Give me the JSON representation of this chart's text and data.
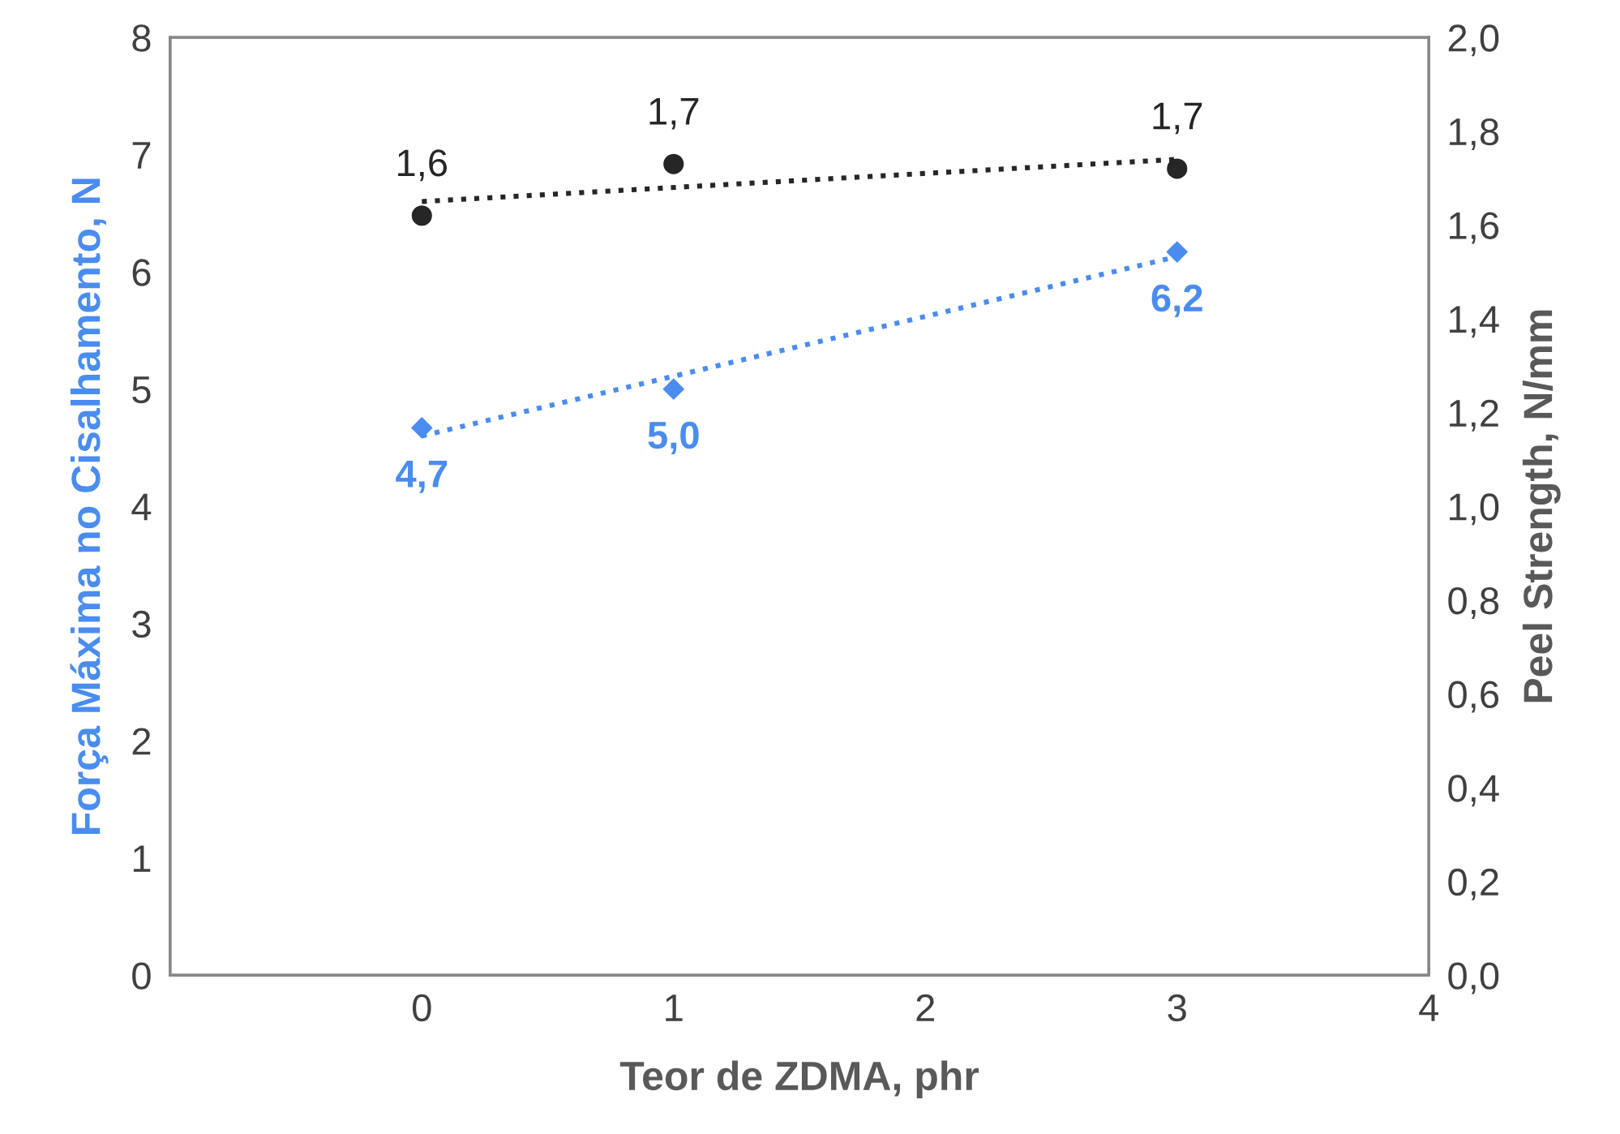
{
  "chart_data": {
    "type": "scatter",
    "xlabel": "Teor de ZDMA, phr",
    "ylabel": "Força Máxima no Cisalhamento, N",
    "y2label": "Peel Strength, N/mm",
    "xlim": [
      -1,
      4
    ],
    "xticks": [
      {
        "value": -1,
        "label": null
      },
      0,
      1,
      2,
      3,
      4
    ],
    "ylim": [
      0,
      8
    ],
    "yticks": [
      0,
      1,
      2,
      3,
      4,
      5,
      6,
      7,
      8
    ],
    "y2lim": [
      0,
      2.0
    ],
    "y2ticks": [
      {
        "value": 0,
        "label": "0,0"
      },
      {
        "value": 0.2,
        "label": "0,2"
      },
      {
        "value": 0.4,
        "label": "0,4"
      },
      {
        "value": 0.6,
        "label": "0,6"
      },
      {
        "value": 0.8,
        "label": "0,8"
      },
      {
        "value": 1.0,
        "label": "1,0"
      },
      {
        "value": 1.2,
        "label": "1,2"
      },
      {
        "value": 1.4,
        "label": "1,4"
      },
      {
        "value": 1.6,
        "label": "1,6"
      },
      {
        "value": 1.8,
        "label": "1,8"
      },
      {
        "value": 2.0,
        "label": "2,0"
      }
    ],
    "grid": false,
    "legend": false,
    "series": [
      {
        "color": "#4a8cf0",
        "x": [
          0,
          1,
          3
        ],
        "values": [
          4.67,
          5.0,
          6.17
        ],
        "value_labels": [
          "4,7",
          "5,0",
          "6,2"
        ],
        "marker": "diamond"
      },
      {
        "type": "line",
        "color": "#4a8cf0",
        "x": [
          0,
          3
        ],
        "values": [
          4.6,
          6.13
        ],
        "marker": "none",
        "line_style": "dotted"
      },
      {
        "axis": "y2",
        "color": "#262626",
        "x": [
          0,
          1,
          3
        ],
        "values": [
          1.62,
          1.73,
          1.72
        ],
        "value_labels": [
          "1,6",
          "1,7",
          "1,7"
        ],
        "marker": "circle"
      },
      {
        "type": "line",
        "axis": "y2",
        "color": "#262626",
        "x": [
          0,
          3
        ],
        "values": [
          1.65,
          1.74
        ],
        "marker": "none",
        "line_style": "dotted"
      }
    ]
  }
}
